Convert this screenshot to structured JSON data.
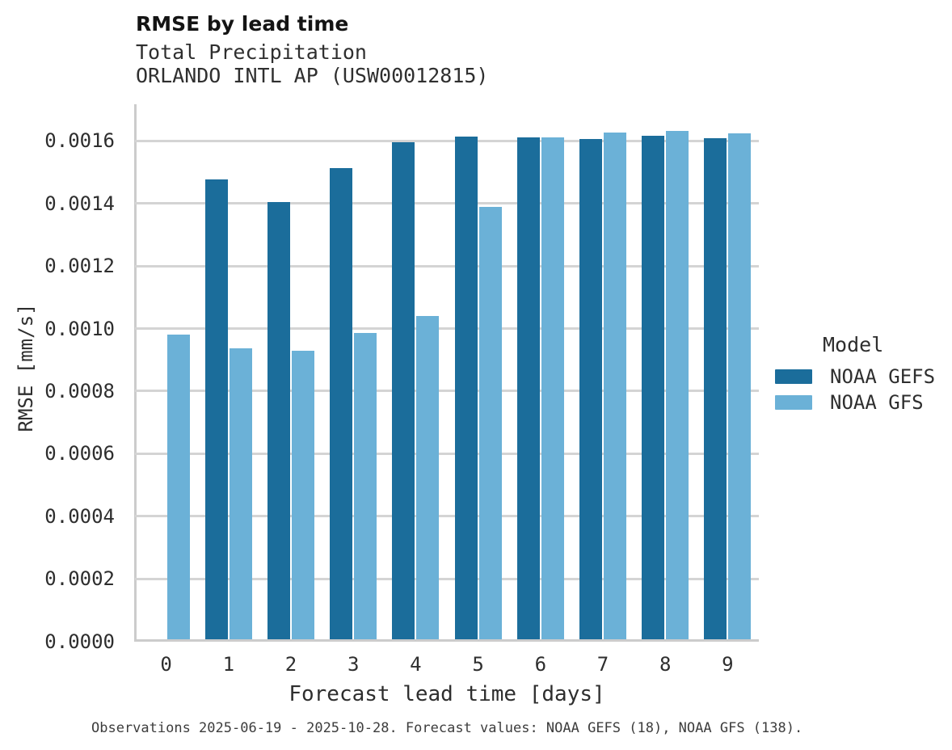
{
  "header": {
    "title": "RMSE by lead time",
    "subtitle_line1": "Total Precipitation",
    "subtitle_line2": "ORLANDO INTL AP (USW00012815)"
  },
  "chart_data": {
    "type": "bar",
    "title": "RMSE by lead time",
    "subtitle": [
      "Total Precipitation",
      "ORLANDO INTL AP (USW00012815)"
    ],
    "xlabel": "Forecast lead time [days]",
    "ylabel": "RMSE [mm/s]",
    "categories": [
      0,
      1,
      2,
      3,
      4,
      5,
      6,
      7,
      8,
      9
    ],
    "series": [
      {
        "name": "NOAA GEFS",
        "color": "#1b6d9b",
        "values": [
          null,
          0.001472,
          0.001401,
          0.001509,
          0.001592,
          0.001611,
          0.001606,
          0.001602,
          0.001613,
          0.001605
        ]
      },
      {
        "name": "NOAA GFS",
        "color": "#6bb1d7",
        "values": [
          0.000977,
          0.000933,
          0.000926,
          0.000981,
          0.001035,
          0.001384,
          0.001607,
          0.001622,
          0.001628,
          0.001619
        ]
      }
    ],
    "ylim": [
      0,
      0.001715
    ],
    "yticks": [
      0.0,
      0.0002,
      0.0004,
      0.0006,
      0.0008,
      0.001,
      0.0012,
      0.0014,
      0.0016
    ],
    "ytick_labels": [
      "0.0000",
      "0.0002",
      "0.0004",
      "0.0006",
      "0.0008",
      "0.0010",
      "0.0012",
      "0.0014",
      "0.0016"
    ],
    "grid": "horizontal",
    "legend_position": "right"
  },
  "legend": {
    "title": "Model",
    "items": [
      {
        "label": "NOAA GEFS",
        "color": "#1b6d9b"
      },
      {
        "label": "NOAA GFS",
        "color": "#6bb1d7"
      }
    ]
  },
  "colors": {
    "gefs_bar": "#1b6d9b",
    "gfs_bar": "#6bb1d7",
    "gridline": "#d4d4d4",
    "axis_line": "#cccccc"
  },
  "footnote": "Observations 2025-06-19 - 2025-10-28. Forecast values: NOAA GEFS (18), NOAA GFS (138)."
}
